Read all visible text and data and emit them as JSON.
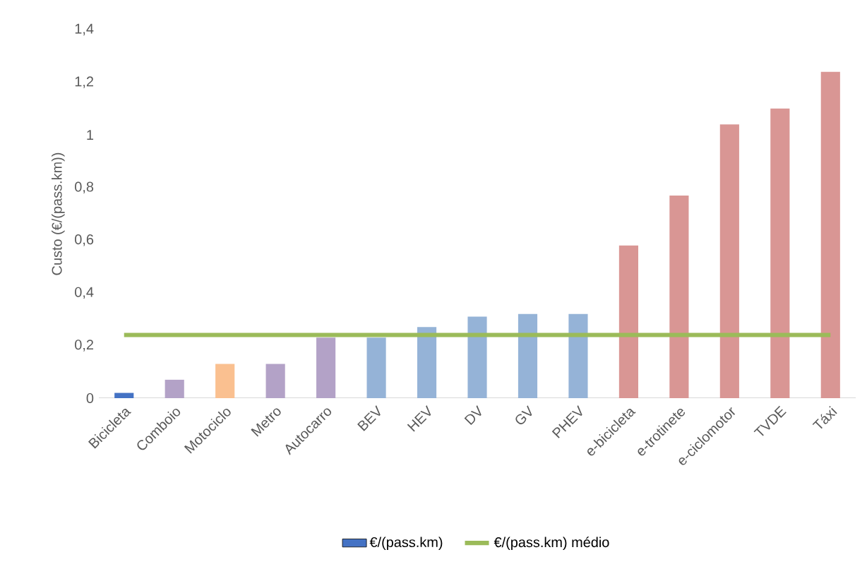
{
  "chart_data": {
    "type": "bar",
    "ylabel": "Custo (€/(pass.km))",
    "categories": [
      "Bicicleta",
      "Comboio",
      "Motociclo",
      "Metro",
      "Autocarro",
      "BEV",
      "HEV",
      "DV",
      "GV",
      "PHEV",
      "e-bicicleta",
      "e-trotinete",
      "e-ciclomotor",
      "TVDE",
      "Táxi"
    ],
    "series": [
      {
        "name": "€/(pass.km)",
        "color": "#4472c4",
        "colors": [
          "#4472c4",
          "#b3a2c7",
          "#fac090",
          "#b3a2c7",
          "#b3a2c7",
          "#95b3d7",
          "#95b3d7",
          "#95b3d7",
          "#95b3d7",
          "#95b3d7",
          "#d99694",
          "#d99694",
          "#d99694",
          "#d99694",
          "#d99694"
        ],
        "values": [
          0.02,
          0.07,
          0.13,
          0.13,
          0.23,
          0.23,
          0.27,
          0.31,
          0.32,
          0.32,
          0.58,
          0.77,
          1.04,
          1.1,
          1.24
        ]
      },
      {
        "name": "€/(pass.km) médio",
        "type": "line",
        "color": "#9bbb59",
        "values": [
          0.24,
          0.24,
          0.24,
          0.24,
          0.24,
          0.24,
          0.24,
          0.24,
          0.24,
          0.24,
          0.24,
          0.24,
          0.24,
          0.24,
          0.24
        ]
      }
    ],
    "ylim": [
      0,
      1.4
    ],
    "yticks": [
      0,
      {
        "value": 0.2,
        "label": "0,2"
      },
      {
        "value": 0.4,
        "label": "0,4"
      },
      {
        "value": 0.6,
        "label": "0,6"
      },
      {
        "value": 0.8,
        "label": "0,8"
      },
      1,
      {
        "value": 1.2,
        "label": "1,2"
      },
      {
        "value": 1.4,
        "label": "1,4"
      }
    ],
    "legend": "bottom",
    "marker": "none"
  }
}
